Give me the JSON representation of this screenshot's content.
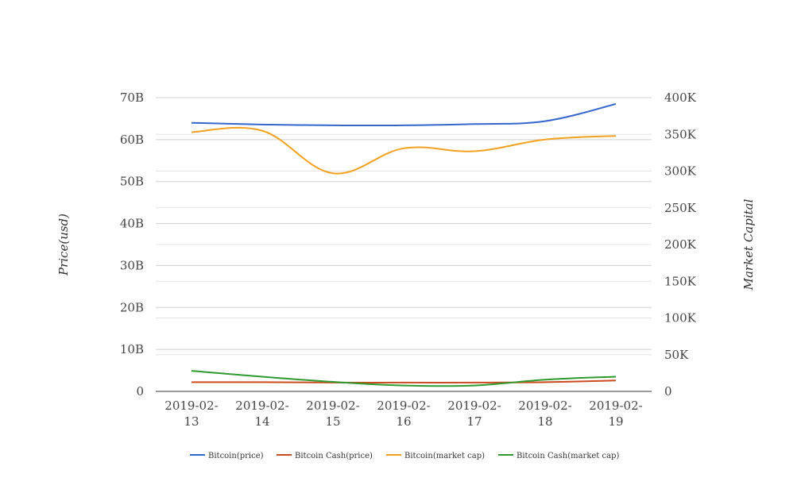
{
  "chart_data": {
    "type": "line",
    "categories": [
      "2019-02-13",
      "2019-02-14",
      "2019-02-15",
      "2019-02-16",
      "2019-02-17",
      "2019-02-18",
      "2019-02-19"
    ],
    "category_lines": [
      [
        "2019-02-",
        "13"
      ],
      [
        "2019-02-",
        "14"
      ],
      [
        "2019-02-",
        "15"
      ],
      [
        "2019-02-",
        "16"
      ],
      [
        "2019-02-",
        "17"
      ],
      [
        "2019-02-",
        "18"
      ],
      [
        "2019-02-",
        "19"
      ]
    ],
    "left_axis": {
      "title": "Price(usd)",
      "ticks": [
        "70B",
        "60B",
        "50B",
        "40B",
        "30B",
        "20B",
        "10B",
        "0"
      ],
      "range": [
        0,
        70000000000
      ]
    },
    "right_axis": {
      "title": "Market Capital",
      "ticks": [
        "400K",
        "350K",
        "300K",
        "250K",
        "200K",
        "150K",
        "100K",
        "50K",
        "0"
      ],
      "range": [
        0,
        400000
      ]
    },
    "series": [
      {
        "name": "Bitcoin(price)",
        "axis": "left",
        "color": "#3366cc",
        "values": [
          64000000000,
          63600000000,
          63400000000,
          63400000000,
          63700000000,
          64400000000,
          68500000000
        ]
      },
      {
        "name": "Bitcoin Cash(price)",
        "axis": "left",
        "color": "#cc4a1f",
        "values": [
          2200000000,
          2200000000,
          2100000000,
          2100000000,
          2100000000,
          2200000000,
          2600000000
        ]
      },
      {
        "name": "Bitcoin(market cap)",
        "axis": "right",
        "color": "#f2a11f",
        "values": [
          353000,
          355000,
          297000,
          331000,
          327000,
          343000,
          348000
        ]
      },
      {
        "name": "Bitcoin Cash(market cap)",
        "axis": "right",
        "color": "#2e9a2e",
        "values": [
          28000,
          20000,
          13000,
          8000,
          8000,
          16000,
          20000
        ]
      }
    ],
    "grid": true,
    "legend_position": "bottom"
  }
}
